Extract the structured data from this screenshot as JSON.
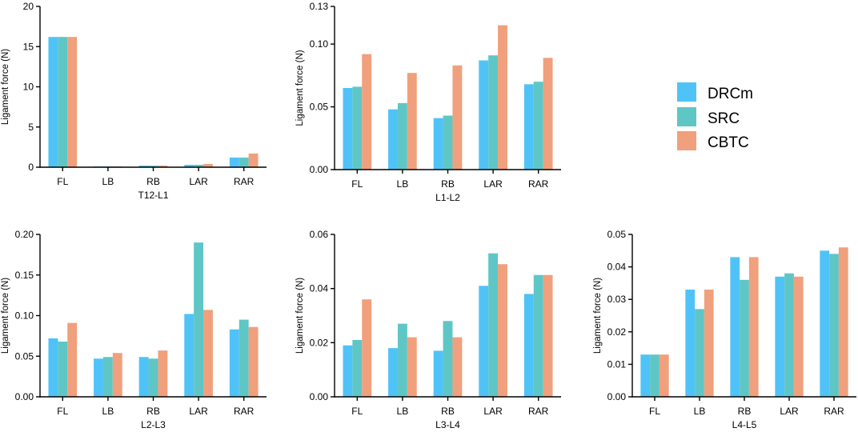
{
  "colors": {
    "DRCm": "#4fc3f7",
    "SRC": "#5fc6c6",
    "CBTC": "#f0a07c"
  },
  "legend": [
    "DRCm",
    "SRC",
    "CBTC"
  ],
  "chart_data": [
    {
      "type": "bar",
      "title": "T12-L1",
      "xlabel": "T12-L1",
      "ylabel": "Ligament force  (N)",
      "categories": [
        "FL",
        "LB",
        "RB",
        "LAR",
        "RAR"
      ],
      "ylim": [
        0,
        20
      ],
      "yticks": [
        "0",
        "5",
        "10",
        "15",
        "20"
      ],
      "series": [
        {
          "name": "DRCm",
          "values": [
            16.2,
            0.1,
            0.2,
            0.3,
            1.2
          ]
        },
        {
          "name": "SRC",
          "values": [
            16.2,
            0.1,
            0.2,
            0.3,
            1.2
          ]
        },
        {
          "name": "CBTC",
          "values": [
            16.2,
            0.1,
            0.2,
            0.4,
            1.7
          ]
        }
      ]
    },
    {
      "type": "bar",
      "title": "L1-L2",
      "xlabel": "L1-L2",
      "ylabel": "Ligament force  (N)",
      "categories": [
        "FL",
        "LB",
        "RB",
        "LAR",
        "RAR"
      ],
      "ylim": [
        0,
        0.13
      ],
      "yticks": [
        "0.00",
        "0.05",
        "0.10",
        "0.13"
      ],
      "series": [
        {
          "name": "DRCm",
          "values": [
            0.065,
            0.048,
            0.041,
            0.087,
            0.068
          ]
        },
        {
          "name": "SRC",
          "values": [
            0.066,
            0.053,
            0.043,
            0.091,
            0.07
          ]
        },
        {
          "name": "CBTC",
          "values": [
            0.092,
            0.077,
            0.083,
            0.115,
            0.089
          ]
        }
      ]
    },
    {
      "type": "bar",
      "title": "L2-L3",
      "xlabel": "L2-L3",
      "ylabel": "Ligament force  (N)",
      "categories": [
        "FL",
        "LB",
        "RB",
        "LAR",
        "RAR"
      ],
      "ylim": [
        0,
        0.2
      ],
      "yticks": [
        "0.00",
        "0.05",
        "0.10",
        "0.15",
        "0.20"
      ],
      "series": [
        {
          "name": "DRCm",
          "values": [
            0.072,
            0.047,
            0.049,
            0.102,
            0.083
          ]
        },
        {
          "name": "SRC",
          "values": [
            0.068,
            0.049,
            0.047,
            0.19,
            0.095
          ]
        },
        {
          "name": "CBTC",
          "values": [
            0.091,
            0.054,
            0.057,
            0.107,
            0.086
          ]
        }
      ]
    },
    {
      "type": "bar",
      "title": "L3-L4",
      "xlabel": "L3-L4",
      "ylabel": "Ligament force  (N)",
      "categories": [
        "FL",
        "LB",
        "RB",
        "LAR",
        "RAR"
      ],
      "ylim": [
        0,
        0.06
      ],
      "yticks": [
        "0.00",
        "0.02",
        "0.04",
        "0.06"
      ],
      "series": [
        {
          "name": "DRCm",
          "values": [
            0.019,
            0.018,
            0.017,
            0.041,
            0.038
          ]
        },
        {
          "name": "SRC",
          "values": [
            0.021,
            0.027,
            0.028,
            0.053,
            0.045
          ]
        },
        {
          "name": "CBTC",
          "values": [
            0.036,
            0.022,
            0.022,
            0.049,
            0.045
          ]
        }
      ]
    },
    {
      "type": "bar",
      "title": "L4-L5",
      "xlabel": "L4-L5",
      "ylabel": "Ligament force  (N)",
      "categories": [
        "FL",
        "LB",
        "RB",
        "LAR",
        "RAR"
      ],
      "ylim": [
        0,
        0.05
      ],
      "yticks": [
        "0.00",
        "0.01",
        "0.02",
        "0.03",
        "0.04",
        "0.05"
      ],
      "series": [
        {
          "name": "DRCm",
          "values": [
            0.013,
            0.033,
            0.043,
            0.037,
            0.045
          ]
        },
        {
          "name": "SRC",
          "values": [
            0.013,
            0.027,
            0.036,
            0.038,
            0.044
          ]
        },
        {
          "name": "CBTC",
          "values": [
            0.013,
            0.033,
            0.043,
            0.037,
            0.046
          ]
        }
      ]
    }
  ]
}
